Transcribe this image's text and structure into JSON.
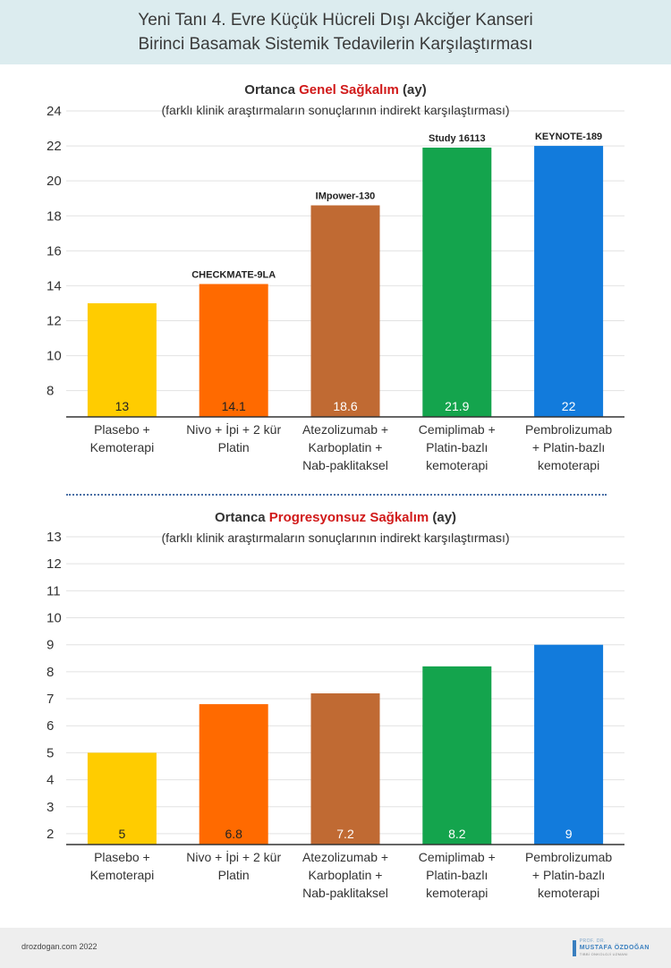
{
  "header": {
    "title_line1": "Yeni Tanı 4. Evre Küçük Hücreli Dışı Akciğer Kanseri",
    "title_line2": "Birinci Basamak Sistemik Tedavilerin Karşılaştırması"
  },
  "colors": {
    "header_bg": "#dcecef",
    "title_highlight": "#d11a1a",
    "bars": [
      "#ffcc00",
      "#ff6a00",
      "#c06a33",
      "#14a44d",
      "#127bdc"
    ]
  },
  "chart_data": [
    {
      "type": "bar",
      "title_prefix": "Ortanca",
      "title_highlight": "Genel Sağkalım",
      "title_suffix": "(ay)",
      "subtitle": "(farklı klinik araştırmaların sonuçlarının indirekt karşılaştırması)",
      "categories": [
        [
          "Plasebo +",
          "Kemoterapi"
        ],
        [
          "Nivo + İpi + 2 kür",
          "Platin"
        ],
        [
          "Atezolizumab +",
          "Karboplatin +",
          "Nab-paklitaksel"
        ],
        [
          "Cemiplimab +",
          "Platin-bazlı",
          "kemoterapi"
        ],
        [
          "Pembrolizumab",
          "+ Platin-bazlı",
          "kemoterapi"
        ]
      ],
      "values": [
        13,
        14.1,
        18.6,
        21.9,
        22
      ],
      "value_labels": [
        "13",
        "14.1",
        "18.6",
        "21.9",
        "22"
      ],
      "trial_labels": [
        "",
        "CHECKMATE-9LA",
        "IMpower-130",
        "Study 16113",
        "KEYNOTE-189"
      ],
      "yticks": [
        "8",
        "10",
        "12",
        "14",
        "16",
        "18",
        "20",
        "22",
        "24"
      ],
      "ylim": [
        6.5,
        24
      ],
      "grid": true
    },
    {
      "type": "bar",
      "title_prefix": "Ortanca",
      "title_highlight": "Progresyonsuz Sağkalım",
      "title_suffix": "(ay)",
      "subtitle": "(farklı klinik araştırmaların sonuçlarının indirekt karşılaştırması)",
      "categories": [
        [
          "Plasebo +",
          "Kemoterapi"
        ],
        [
          "Nivo + İpi + 2 kür",
          "Platin"
        ],
        [
          "Atezolizumab +",
          "Karboplatin +",
          "Nab-paklitaksel"
        ],
        [
          "Cemiplimab +",
          "Platin-bazlı",
          "kemoterapi"
        ],
        [
          "Pembrolizumab",
          "+ Platin-bazlı",
          "kemoterapi"
        ]
      ],
      "values": [
        5,
        6.8,
        7.2,
        8.2,
        9
      ],
      "value_labels": [
        "5",
        "6.8",
        "7.2",
        "8.2",
        "9"
      ],
      "trial_labels": [
        "",
        "",
        "",
        "",
        ""
      ],
      "yticks": [
        "2",
        "3",
        "4",
        "5",
        "6",
        "7",
        "8",
        "9",
        "10",
        "11",
        "12",
        "13"
      ],
      "ylim": [
        1.6,
        13
      ],
      "grid": true
    }
  ],
  "footer": {
    "site": "drozdogan.com 2022",
    "logo_top": "PROF. DR.",
    "logo_name": "MUSTAFA ÖZDOĞAN",
    "logo_sub": "TIBBİ ONKOLOJİ UZMANI"
  }
}
